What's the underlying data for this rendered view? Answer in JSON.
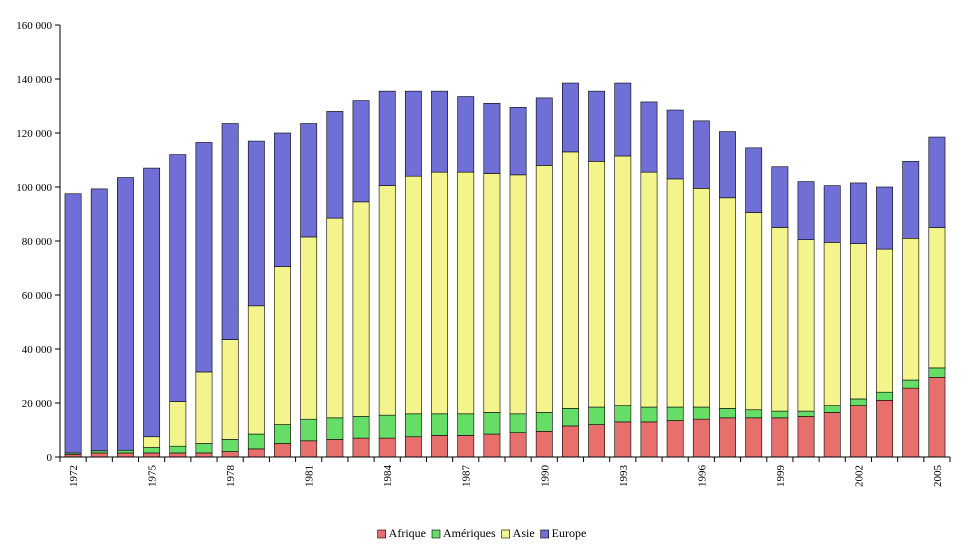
{
  "chart_data": {
    "type": "bar",
    "stacked": true,
    "title": "",
    "xlabel": "",
    "ylabel": "",
    "ylim": [
      0,
      160000
    ],
    "y_ticks": [
      0,
      20000,
      40000,
      60000,
      80000,
      100000,
      120000,
      140000,
      160000
    ],
    "y_tick_labels": [
      "0",
      "20 000",
      "40 000",
      "60 000",
      "80 000",
      "100 000",
      "120 000",
      "140 000",
      "160 000"
    ],
    "categories": [
      "1972",
      "1973",
      "1974",
      "1975",
      "1976",
      "1977",
      "1978",
      "1979",
      "1980",
      "1981",
      "1982",
      "1983",
      "1984",
      "1985",
      "1986",
      "1987",
      "1988",
      "1989",
      "1990",
      "1991",
      "1992",
      "1993",
      "1994",
      "1995",
      "1996",
      "1997",
      "1998",
      "1999",
      "2000",
      "2001",
      "2002",
      "2003",
      "2004",
      "2005"
    ],
    "x_tick_labels": [
      "1972",
      "",
      "",
      "1975",
      "",
      "",
      "1978",
      "",
      "",
      "1981",
      "",
      "",
      "1984",
      "",
      "",
      "1987",
      "",
      "",
      "1990",
      "",
      "",
      "1993",
      "",
      "",
      "1996",
      "",
      "",
      "1999",
      "",
      "",
      "2002",
      "",
      "",
      "2005"
    ],
    "legend_position": "bottom",
    "series": [
      {
        "name": "Afrique",
        "color": "#e8706c",
        "values": [
          1000,
          1500,
          1500,
          1500,
          1500,
          1500,
          2000,
          3000,
          5000,
          6000,
          6500,
          7000,
          7000,
          7500,
          8000,
          8000,
          8500,
          9000,
          9500,
          11500,
          12000,
          13000,
          13000,
          13500,
          14000,
          14500,
          14500,
          14500,
          15000,
          16500,
          19000,
          21000,
          25500,
          29500
        ]
      },
      {
        "name": "Amériques",
        "color": "#66dd66",
        "values": [
          500,
          800,
          1000,
          2000,
          2500,
          3500,
          4500,
          5500,
          7000,
          8000,
          8000,
          8000,
          8500,
          8500,
          8000,
          8000,
          8000,
          7000,
          7000,
          6500,
          6500,
          6000,
          5500,
          5000,
          4500,
          3500,
          3000,
          2500,
          2000,
          2500,
          2500,
          3000,
          3000,
          3500
        ]
      },
      {
        "name": "Asie",
        "color": "#f4f48c",
        "values": [
          0,
          0,
          0,
          4000,
          16500,
          26500,
          37000,
          47500,
          58500,
          67500,
          74000,
          79500,
          85000,
          88000,
          89500,
          89500,
          88500,
          88500,
          91500,
          95000,
          91000,
          92500,
          87000,
          84500,
          81000,
          78000,
          73000,
          68000,
          63500,
          60500,
          57500,
          53000,
          52500,
          52000
        ]
      },
      {
        "name": "Europe",
        "color": "#6f6fd6",
        "values": [
          96000,
          97000,
          101000,
          99500,
          91500,
          85000,
          80000,
          61000,
          49500,
          42000,
          39500,
          37500,
          35000,
          31500,
          30000,
          28000,
          26000,
          25000,
          25000,
          25500,
          26000,
          27000,
          26000,
          25500,
          25000,
          24500,
          24000,
          22500,
          21500,
          21000,
          22500,
          23000,
          28500,
          33500
        ]
      }
    ]
  }
}
